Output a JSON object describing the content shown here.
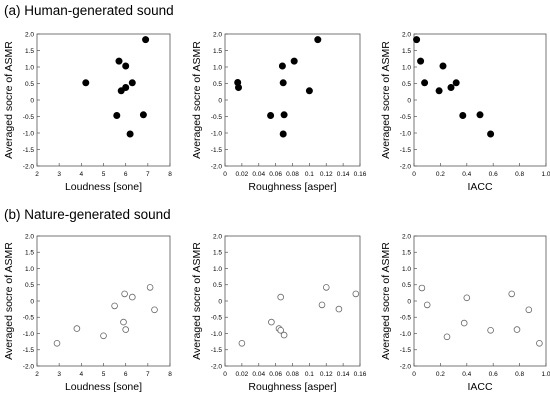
{
  "sections": [
    {
      "title": "(a) Human-generated sound"
    },
    {
      "title": "(b) Nature-generated sound"
    }
  ],
  "chart_data": [
    {
      "type": "scatter",
      "section": "a",
      "marker": "filled",
      "xlabel": "Loudness [sone]",
      "ylabel": "Averaged socre of ASMR",
      "xlim": [
        2,
        8
      ],
      "ylim": [
        -2.0,
        2.0
      ],
      "xticks": [
        "2",
        "3",
        "4",
        "5",
        "6",
        "7",
        "8"
      ],
      "yticks": [
        "-2.0",
        "-1.5",
        "-1.0",
        "-0.5",
        "0",
        "0.5",
        "1.0",
        "1.5",
        "2.0"
      ],
      "points": [
        {
          "x": 4.2,
          "y": 0.52
        },
        {
          "x": 5.7,
          "y": 1.18
        },
        {
          "x": 6.0,
          "y": 1.03
        },
        {
          "x": 6.9,
          "y": 1.83
        },
        {
          "x": 6.3,
          "y": 0.52
        },
        {
          "x": 6.0,
          "y": 0.38
        },
        {
          "x": 5.8,
          "y": 0.28
        },
        {
          "x": 5.6,
          "y": -0.47
        },
        {
          "x": 6.8,
          "y": -0.45
        },
        {
          "x": 6.2,
          "y": -1.03
        }
      ]
    },
    {
      "type": "scatter",
      "section": "a",
      "marker": "filled",
      "xlabel": "Roughness [asper]",
      "ylabel": "Averaged socre of ASMR",
      "xlim": [
        0,
        0.16
      ],
      "ylim": [
        -2.0,
        2.0
      ],
      "xticks": [
        "0",
        "0.02",
        "0.04",
        "0.06",
        "0.08",
        "0.1",
        "0.12",
        "0.14",
        "0.16"
      ],
      "yticks": [
        "-2.0",
        "-1.5",
        "-1.0",
        "-0.5",
        "0",
        "0.5",
        "1.0",
        "1.5",
        "2.0"
      ],
      "points": [
        {
          "x": 0.015,
          "y": 0.53
        },
        {
          "x": 0.016,
          "y": 0.38
        },
        {
          "x": 0.068,
          "y": 1.03
        },
        {
          "x": 0.082,
          "y": 1.18
        },
        {
          "x": 0.11,
          "y": 1.83
        },
        {
          "x": 0.069,
          "y": 0.52
        },
        {
          "x": 0.1,
          "y": 0.28
        },
        {
          "x": 0.054,
          "y": -0.47
        },
        {
          "x": 0.07,
          "y": -0.45
        },
        {
          "x": 0.069,
          "y": -1.03
        }
      ]
    },
    {
      "type": "scatter",
      "section": "a",
      "marker": "filled",
      "xlabel": "IACC",
      "ylabel": "Averaged socre of ASMR",
      "xlim": [
        0,
        1.0
      ],
      "ylim": [
        -2.0,
        2.0
      ],
      "xticks": [
        "0",
        "0.2",
        "0.4",
        "0.6",
        "0.8",
        "1.0"
      ],
      "yticks": [
        "-2.0",
        "-1.5",
        "-1.0",
        "-0.5",
        "0",
        "0.5",
        "1.0",
        "1.5",
        "2.0"
      ],
      "points": [
        {
          "x": 0.02,
          "y": 1.83
        },
        {
          "x": 0.05,
          "y": 1.18
        },
        {
          "x": 0.08,
          "y": 0.52
        },
        {
          "x": 0.22,
          "y": 1.03
        },
        {
          "x": 0.19,
          "y": 0.28
        },
        {
          "x": 0.28,
          "y": 0.38
        },
        {
          "x": 0.32,
          "y": 0.52
        },
        {
          "x": 0.37,
          "y": -0.47
        },
        {
          "x": 0.5,
          "y": -0.45
        },
        {
          "x": 0.58,
          "y": -1.03
        }
      ]
    },
    {
      "type": "scatter",
      "section": "b",
      "marker": "open",
      "xlabel": "Loudness [sone]",
      "ylabel": "Averaged socre of ASMR",
      "xlim": [
        2,
        8
      ],
      "ylim": [
        -2.0,
        2.0
      ],
      "xticks": [
        "2",
        "3",
        "4",
        "5",
        "6",
        "7",
        "8"
      ],
      "yticks": [
        "-2.0",
        "-1.5",
        "-1.0",
        "-0.5",
        "0",
        "0.5",
        "1.0",
        "1.5",
        "2.0"
      ],
      "points": [
        {
          "x": 2.9,
          "y": -1.3
        },
        {
          "x": 3.8,
          "y": -0.85
        },
        {
          "x": 5.0,
          "y": -1.07
        },
        {
          "x": 5.5,
          "y": -0.15
        },
        {
          "x": 5.95,
          "y": 0.22
        },
        {
          "x": 6.3,
          "y": 0.12
        },
        {
          "x": 5.9,
          "y": -0.65
        },
        {
          "x": 6.0,
          "y": -0.88
        },
        {
          "x": 7.1,
          "y": 0.42
        },
        {
          "x": 7.3,
          "y": -0.27
        }
      ]
    },
    {
      "type": "scatter",
      "section": "b",
      "marker": "open",
      "xlabel": "Roughness [asper]",
      "ylabel": "Averaged socre of ASMR",
      "xlim": [
        0,
        0.16
      ],
      "ylim": [
        -2.0,
        2.0
      ],
      "xticks": [
        "0",
        "0.02",
        "0.04",
        "0.06",
        "0.08",
        "0.1",
        "0.12",
        "0.14",
        "0.16"
      ],
      "yticks": [
        "-2.0",
        "-1.5",
        "-1.0",
        "-0.5",
        "0",
        "0.5",
        "1.0",
        "1.5",
        "2.0"
      ],
      "points": [
        {
          "x": 0.02,
          "y": -1.3
        },
        {
          "x": 0.055,
          "y": -0.65
        },
        {
          "x": 0.064,
          "y": -0.85
        },
        {
          "x": 0.066,
          "y": -0.9
        },
        {
          "x": 0.07,
          "y": -1.05
        },
        {
          "x": 0.066,
          "y": 0.12
        },
        {
          "x": 0.115,
          "y": -0.12
        },
        {
          "x": 0.12,
          "y": 0.42
        },
        {
          "x": 0.135,
          "y": -0.25
        },
        {
          "x": 0.155,
          "y": 0.22
        }
      ]
    },
    {
      "type": "scatter",
      "section": "b",
      "marker": "open",
      "xlabel": "IACC",
      "ylabel": "Averaged socre of ASMR",
      "xlim": [
        0,
        1.0
      ],
      "ylim": [
        -2.0,
        2.0
      ],
      "xticks": [
        "0",
        "0.2",
        "0.4",
        "0.6",
        "0.8",
        "1.0"
      ],
      "yticks": [
        "-2.0",
        "-1.5",
        "-1.0",
        "-0.5",
        "0",
        "0.5",
        "1.0",
        "1.5",
        "2.0"
      ],
      "points": [
        {
          "x": 0.06,
          "y": 0.4
        },
        {
          "x": 0.1,
          "y": -0.12
        },
        {
          "x": 0.25,
          "y": -1.1
        },
        {
          "x": 0.38,
          "y": -0.68
        },
        {
          "x": 0.4,
          "y": 0.1
        },
        {
          "x": 0.58,
          "y": -0.9
        },
        {
          "x": 0.74,
          "y": 0.22
        },
        {
          "x": 0.78,
          "y": -0.88
        },
        {
          "x": 0.87,
          "y": -0.27
        },
        {
          "x": 0.95,
          "y": -1.3
        }
      ]
    }
  ]
}
